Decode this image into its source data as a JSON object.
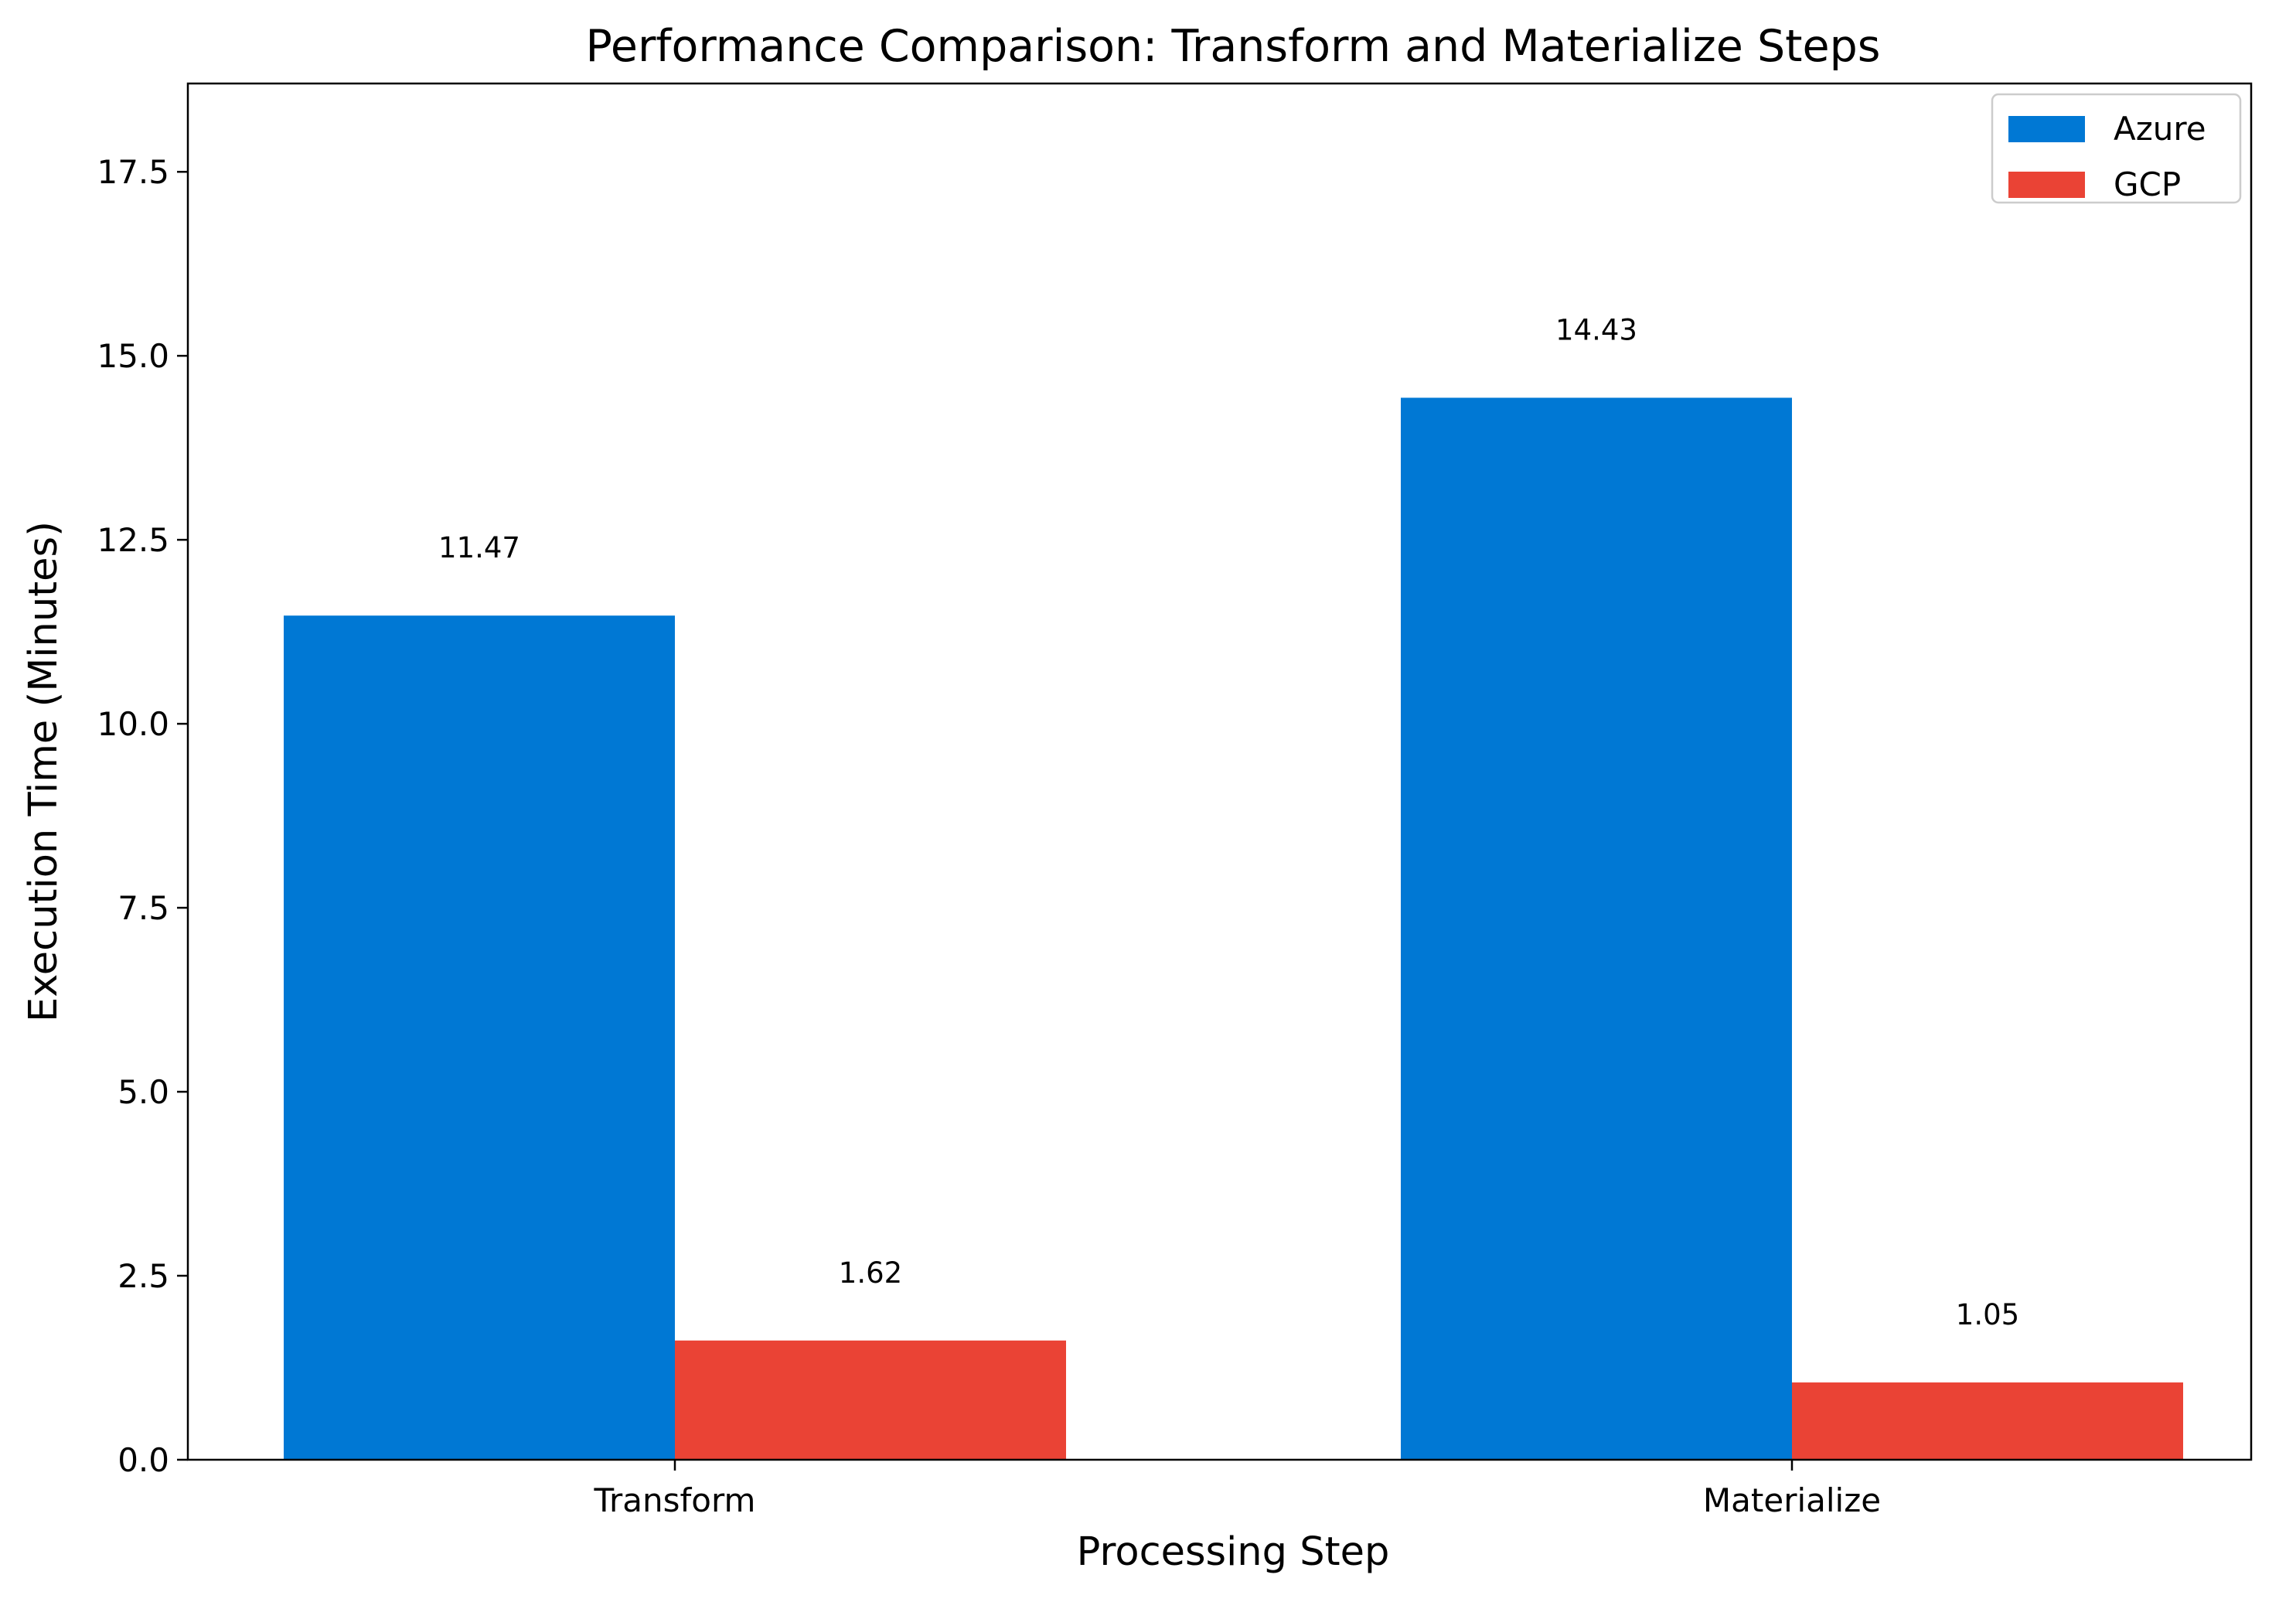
{
  "chart_data": {
    "type": "bar",
    "title": "Performance Comparison: Transform and Materialize Steps",
    "xlabel": "Processing Step",
    "ylabel": "Execution Time (Minutes)",
    "categories": [
      "Transform",
      "Materialize"
    ],
    "series": [
      {
        "name": "Azure",
        "color": "#0078d4",
        "values": [
          11.47,
          14.43
        ],
        "labels": [
          "11.47",
          "14.43"
        ]
      },
      {
        "name": "GCP",
        "color": "#ea4335",
        "values": [
          1.62,
          1.05
        ],
        "labels": [
          "1.62",
          "1.05"
        ]
      }
    ],
    "ylim": [
      0,
      18.7
    ],
    "yticks": [
      0.0,
      2.5,
      5.0,
      7.5,
      10.0,
      12.5,
      15.0,
      17.5
    ],
    "ytick_labels": [
      "0.0",
      "2.5",
      "5.0",
      "7.5",
      "10.0",
      "12.5",
      "15.0",
      "17.5"
    ],
    "grid": false,
    "legend_position": "top-right"
  }
}
